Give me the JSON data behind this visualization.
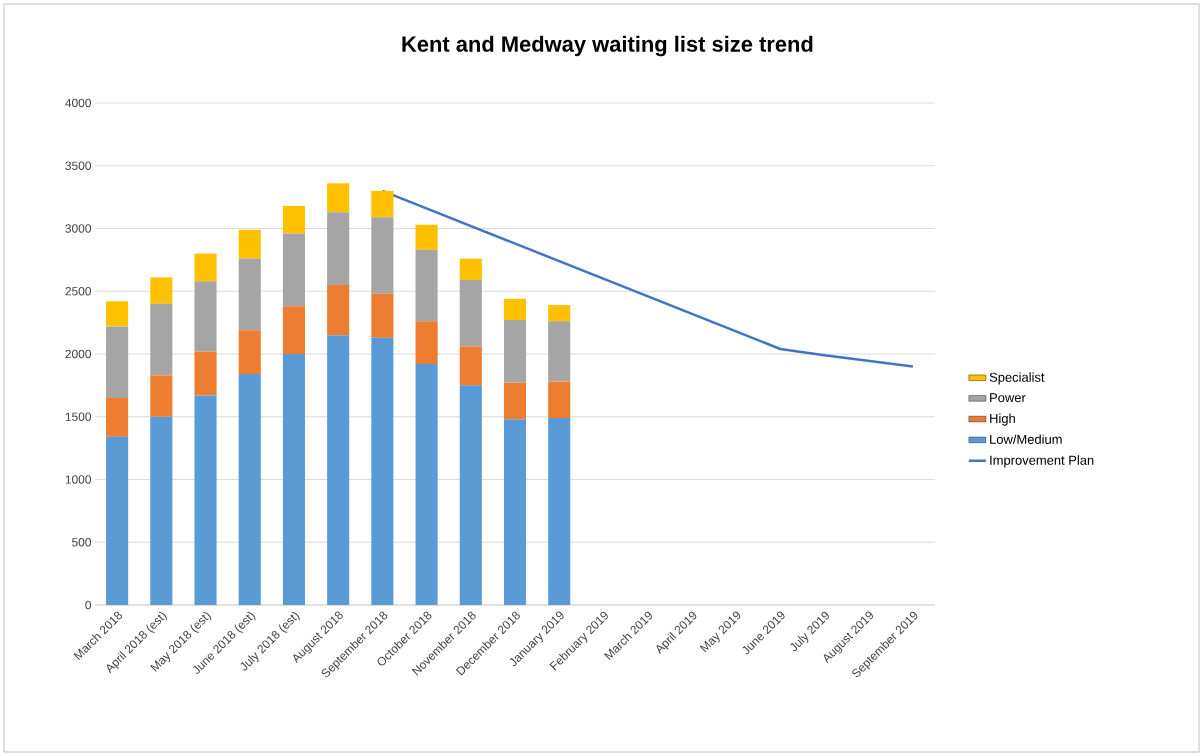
{
  "chart_data": {
    "type": "bar",
    "stacked": true,
    "title": "Kent and Medway waiting list size trend",
    "categories": [
      "March 2018",
      "April 2018 (est)",
      "May 2018 (est)",
      "June 2018 (est)",
      "July 2018 (est)",
      "August 2018",
      "September 2018",
      "October 2018",
      "November 2018",
      "December 2018",
      "January 2019",
      "February 2019",
      "March 2019",
      "April 2019",
      "May 2019",
      "June 2019",
      "July 2019",
      "August 2019",
      "September 2019"
    ],
    "series": [
      {
        "name": "Low/Medium",
        "color": "#5b9bd5",
        "values": [
          1340,
          1500,
          1670,
          1840,
          2000,
          2150,
          2130,
          1920,
          1750,
          1480,
          1490,
          null,
          null,
          null,
          null,
          null,
          null,
          null,
          null
        ]
      },
      {
        "name": "High",
        "color": "#ed7d31",
        "values": [
          310,
          330,
          350,
          350,
          380,
          400,
          350,
          340,
          310,
          290,
          290,
          null,
          null,
          null,
          null,
          null,
          null,
          null,
          null
        ]
      },
      {
        "name": "Power",
        "color": "#a5a5a5",
        "values": [
          570,
          570,
          560,
          570,
          580,
          580,
          610,
          570,
          530,
          500,
          480,
          null,
          null,
          null,
          null,
          null,
          null,
          null,
          null
        ]
      },
      {
        "name": "Specialist",
        "color": "#ffc000",
        "values": [
          200,
          210,
          220,
          230,
          220,
          230,
          210,
          200,
          170,
          170,
          130,
          null,
          null,
          null,
          null,
          null,
          null,
          null,
          null
        ]
      },
      {
        "name": "Improvement Plan",
        "type": "line",
        "color": "#4472c4",
        "values": [
          null,
          null,
          null,
          null,
          null,
          null,
          3300,
          3160,
          3020,
          2880,
          2740,
          2600,
          2460,
          2320,
          2180,
          2040,
          1990,
          1945,
          1900
        ]
      }
    ],
    "ylim": [
      0,
      4000
    ],
    "yticks": [
      0,
      500,
      1000,
      1500,
      2000,
      2500,
      3000,
      3500,
      4000
    ],
    "grid": "y",
    "legend": "right"
  }
}
